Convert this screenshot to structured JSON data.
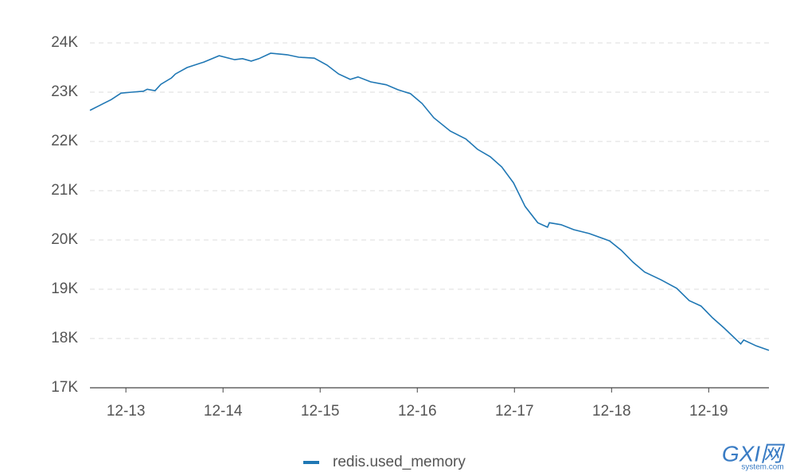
{
  "chart_data": {
    "type": "line",
    "x": [
      12.63,
      12.73,
      12.85,
      12.95,
      13.06,
      13.18,
      13.22,
      13.3,
      13.36,
      13.47,
      13.51,
      13.63,
      13.8,
      13.96,
      14.12,
      14.2,
      14.29,
      14.37,
      14.49,
      14.66,
      14.78,
      14.94,
      15.07,
      15.19,
      15.31,
      15.39,
      15.52,
      15.68,
      15.8,
      15.93,
      16.05,
      16.17,
      16.34,
      16.5,
      16.62,
      16.75,
      16.87,
      16.99,
      17.11,
      17.24,
      17.34,
      17.36,
      17.48,
      17.61,
      17.77,
      17.98,
      18.1,
      18.22,
      18.34,
      18.51,
      18.67,
      18.8,
      18.92,
      19.04,
      19.16,
      19.33,
      19.36,
      19.49,
      19.62
    ],
    "series": [
      {
        "name": "redis.used_memory",
        "color": "#1f77b4",
        "values": [
          22630,
          22730,
          22850,
          22980,
          23000,
          23020,
          23060,
          23030,
          23160,
          23290,
          23370,
          23500,
          23610,
          23740,
          23660,
          23680,
          23630,
          23680,
          23790,
          23760,
          23710,
          23690,
          23550,
          23370,
          23260,
          23310,
          23210,
          23150,
          23050,
          22970,
          22770,
          22480,
          22210,
          22050,
          21840,
          21690,
          21480,
          21160,
          20680,
          20350,
          20260,
          20350,
          20310,
          20210,
          20130,
          19980,
          19790,
          19550,
          19350,
          19190,
          19020,
          18770,
          18660,
          18420,
          18210,
          17890,
          17970,
          17850,
          17760
        ]
      }
    ],
    "xlim": [
      12.63,
      19.62
    ],
    "xticks": [
      {
        "value": 13,
        "label": "12-13"
      },
      {
        "value": 14,
        "label": "12-14"
      },
      {
        "value": 15,
        "label": "12-15"
      },
      {
        "value": 16,
        "label": "12-16"
      },
      {
        "value": 17,
        "label": "12-17"
      },
      {
        "value": 18,
        "label": "12-18"
      },
      {
        "value": 19,
        "label": "12-19"
      }
    ],
    "ylim": [
      17000,
      24000
    ],
    "yticks": [
      {
        "value": 17000,
        "label": "17K"
      },
      {
        "value": 18000,
        "label": "18K"
      },
      {
        "value": 19000,
        "label": "19K"
      },
      {
        "value": 20000,
        "label": "20K"
      },
      {
        "value": 21000,
        "label": "21K"
      },
      {
        "value": 22000,
        "label": "22K"
      },
      {
        "value": 23000,
        "label": "23K"
      },
      {
        "value": 24000,
        "label": "24K"
      }
    ],
    "grid": true,
    "legend": "bottom",
    "watermark": [
      "GXI网",
      "system.com"
    ]
  }
}
